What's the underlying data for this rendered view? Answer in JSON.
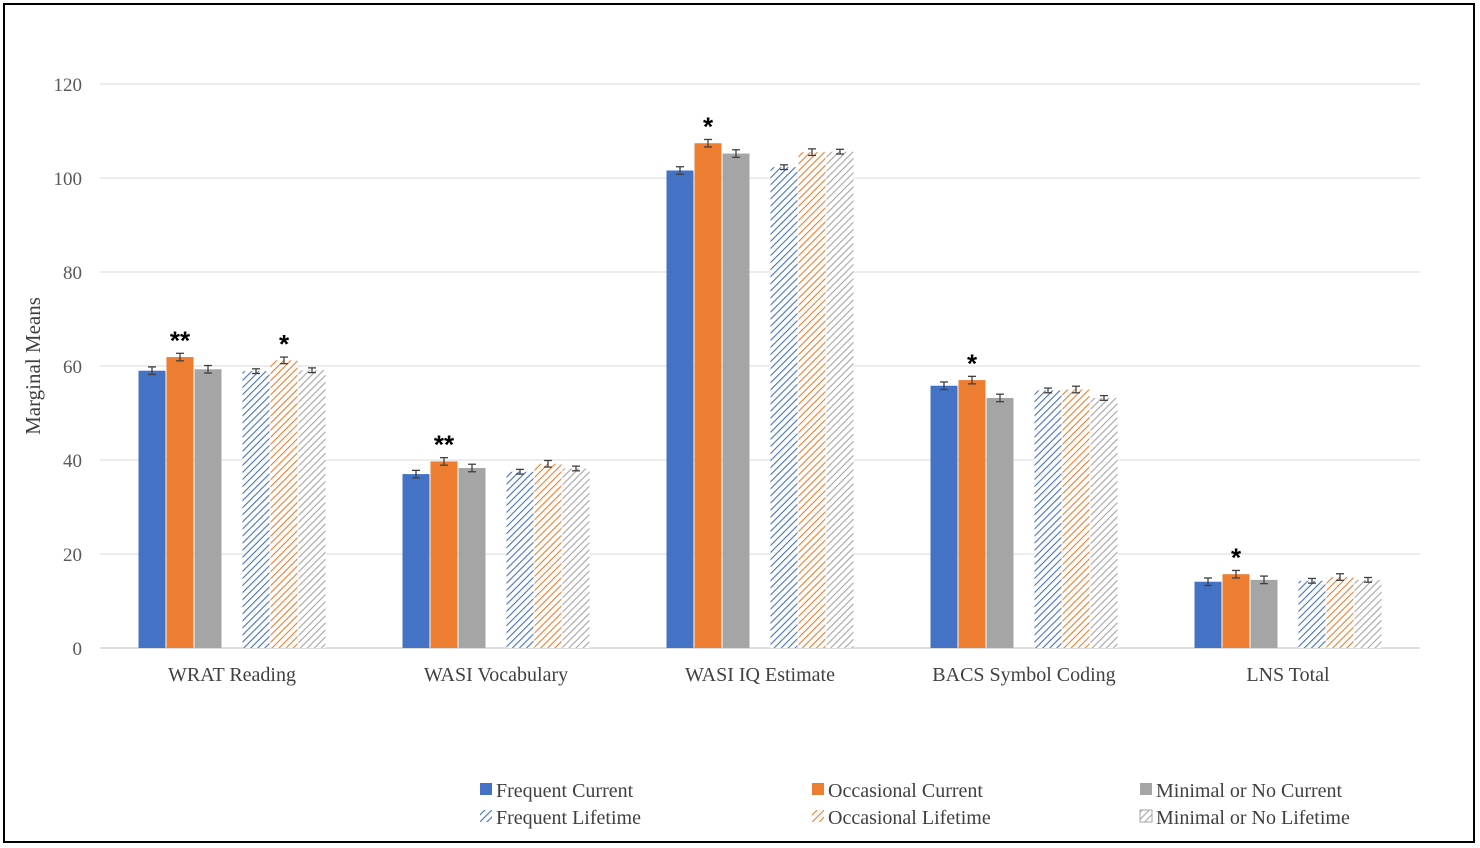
{
  "chart_data": {
    "type": "bar",
    "title": "",
    "xlabel": "",
    "ylabel": "Marginal Means",
    "ylim": [
      0,
      120
    ],
    "yticks": [
      0,
      20,
      40,
      60,
      80,
      100,
      120
    ],
    "categories": [
      "WRAT Reading",
      "WASI Vocabulary",
      "WASI IQ Estimate",
      "BACS Symbol Coding",
      "LNS Total"
    ],
    "series": [
      {
        "name": "Frequent Current",
        "color": "#4472C4",
        "pattern": "solid",
        "group": "current",
        "values": [
          59.0,
          37.0,
          101.6,
          55.8,
          14.1
        ],
        "errors": [
          0.8,
          0.8,
          0.8,
          0.8,
          0.8
        ]
      },
      {
        "name": "Occasional Current",
        "color": "#ED7D31",
        "pattern": "solid",
        "group": "current",
        "values": [
          61.9,
          39.7,
          107.4,
          57.0,
          15.7
        ],
        "errors": [
          0.8,
          0.8,
          0.8,
          0.8,
          0.8
        ]
      },
      {
        "name": "Minimal or No Current",
        "color": "#A5A5A5",
        "pattern": "solid",
        "group": "current",
        "values": [
          59.3,
          38.3,
          105.2,
          53.2,
          14.5
        ],
        "errors": [
          0.8,
          0.8,
          0.8,
          0.8,
          0.8
        ]
      },
      {
        "name": "Frequent Lifetime",
        "color": "#4472C4",
        "pattern": "hatch",
        "group": "lifetime",
        "values": [
          58.9,
          37.5,
          102.3,
          54.8,
          14.3
        ],
        "errors": [
          0.5,
          0.5,
          0.5,
          0.5,
          0.5
        ]
      },
      {
        "name": "Occasional Lifetime",
        "color": "#ED7D31",
        "pattern": "hatch",
        "group": "lifetime",
        "values": [
          61.2,
          39.2,
          105.5,
          55.0,
          15.1
        ],
        "errors": [
          0.7,
          0.7,
          0.7,
          0.7,
          0.7
        ]
      },
      {
        "name": "Minimal or No Lifetime",
        "color": "#A5A5A5",
        "pattern": "hatch",
        "group": "lifetime",
        "values": [
          59.1,
          38.2,
          105.6,
          53.2,
          14.5
        ],
        "errors": [
          0.5,
          0.5,
          0.5,
          0.5,
          0.5
        ]
      }
    ],
    "annotations": [
      {
        "category": "WRAT Reading",
        "group": "current",
        "text": "**"
      },
      {
        "category": "WRAT Reading",
        "group": "lifetime",
        "text": "*"
      },
      {
        "category": "WASI Vocabulary",
        "group": "current",
        "text": "**"
      },
      {
        "category": "WASI IQ Estimate",
        "group": "current",
        "text": "*"
      },
      {
        "category": "BACS Symbol Coding",
        "group": "current",
        "text": "*"
      },
      {
        "category": "LNS Total",
        "group": "current",
        "text": "*"
      }
    ],
    "legend": {
      "placement": "bottom",
      "order": [
        "Frequent Current",
        "Occasional Current",
        "Minimal or No Current",
        "Frequent Lifetime",
        "Occasional Lifetime",
        "Minimal or No Lifetime"
      ]
    },
    "grid": true
  }
}
